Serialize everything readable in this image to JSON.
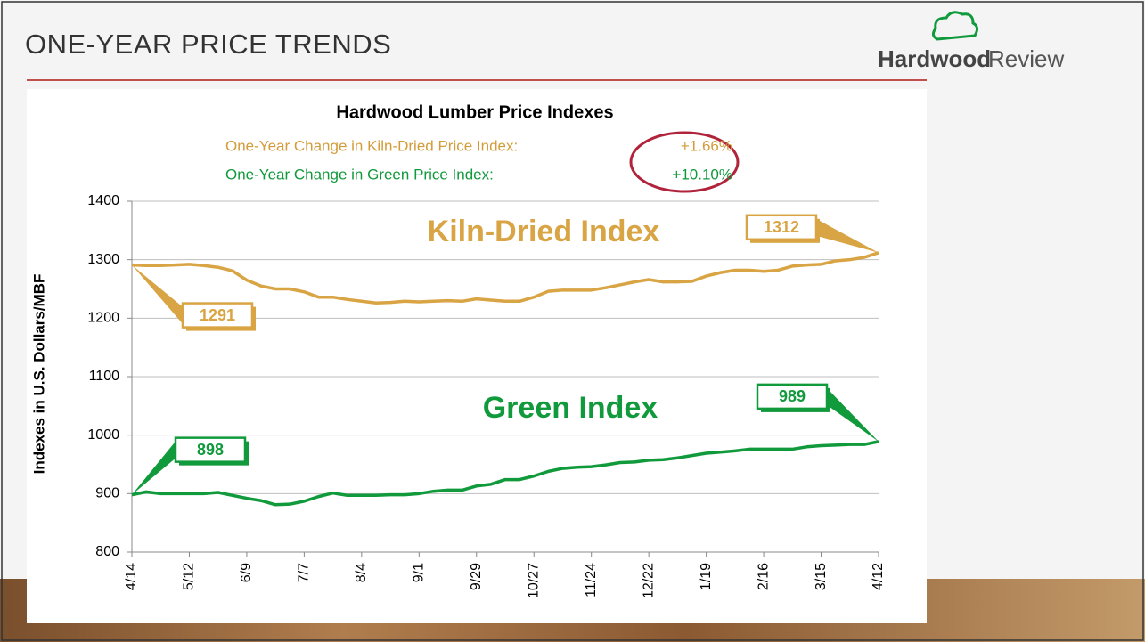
{
  "slide": {
    "title": "ONE-YEAR PRICE TRENDS",
    "logo_bold": "Hardwood",
    "logo_light": "Review"
  },
  "chart_data": {
    "type": "line",
    "title": "Hardwood Lumber Price Indexes",
    "annotations": [
      {
        "label": "One-Year Change in Kiln-Dried Price Index:",
        "value": "+1.66%",
        "color": "#d39c3a"
      },
      {
        "label": "One-Year Change in Green Price Index:",
        "value": "+10.10%",
        "color": "#119a3c"
      }
    ],
    "y_label": "Indexes in U.S. Dollars/MBF",
    "categories": [
      "4/14",
      null,
      null,
      null,
      "5/12",
      null,
      null,
      null,
      "6/9",
      null,
      null,
      null,
      "7/7",
      null,
      null,
      null,
      "8/4",
      null,
      null,
      null,
      "9/1",
      null,
      null,
      null,
      "9/29",
      null,
      null,
      null,
      "10/27",
      null,
      null,
      null,
      "11/24",
      null,
      null,
      null,
      "12/22",
      null,
      null,
      null,
      "1/19",
      null,
      null,
      null,
      "2/16",
      null,
      null,
      null,
      "3/15",
      null,
      null,
      null,
      "4/12"
    ],
    "series": [
      {
        "name": "Kiln-Dried Index",
        "color": "#d9a443",
        "values": [
          1291,
          1290,
          1290,
          1291,
          1292,
          1290,
          1287,
          1281,
          1265,
          1255,
          1250,
          1250,
          1245,
          1236,
          1236,
          1232,
          1229,
          1226,
          1227,
          1229,
          1228,
          1229,
          1230,
          1229,
          1233,
          1231,
          1229,
          1229,
          1236,
          1246,
          1248,
          1248,
          1248,
          1252,
          1257,
          1262,
          1266,
          1262,
          1262,
          1263,
          1272,
          1278,
          1282,
          1282,
          1280,
          1282,
          1289,
          1291,
          1292,
          1298,
          1300,
          1304,
          1312
        ]
      },
      {
        "name": "Green Index",
        "color": "#119a3c",
        "values": [
          898,
          903,
          900,
          900,
          900,
          900,
          902,
          897,
          892,
          888,
          881,
          882,
          887,
          895,
          901,
          897,
          897,
          897,
          898,
          898,
          900,
          904,
          906,
          906,
          913,
          916,
          924,
          924,
          930,
          938,
          943,
          945,
          946,
          949,
          953,
          954,
          957,
          958,
          961,
          965,
          969,
          971,
          973,
          976,
          976,
          976,
          976,
          980,
          982,
          983,
          984,
          984,
          989
        ]
      }
    ],
    "ylim": [
      800,
      1400
    ],
    "yticks": [
      800,
      900,
      1000,
      1100,
      1200,
      1300,
      1400
    ],
    "grid": true
  }
}
